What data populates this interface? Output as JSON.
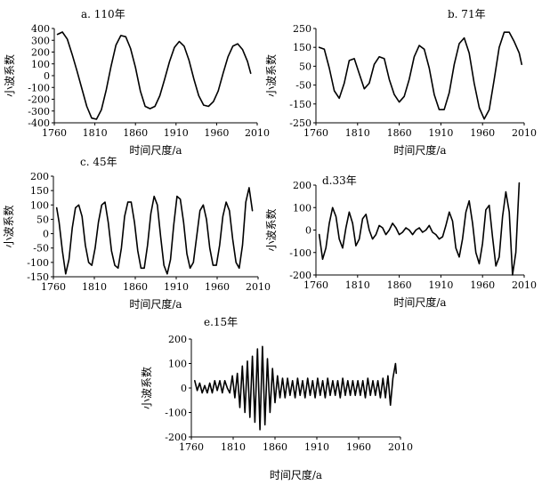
{
  "chart_data": [
    {
      "type": "line",
      "panel_label": "a. 110年",
      "xlabel": "时间尺度/a",
      "ylabel": "小波系数",
      "xlim": [
        1760,
        2010
      ],
      "ylim": [
        -400,
        400
      ],
      "xticks": [
        1760,
        1810,
        1860,
        1910,
        1960,
        2010
      ],
      "yticks": [
        -400,
        -300,
        -200,
        -100,
        0,
        100,
        200,
        300,
        400
      ],
      "series": [
        {
          "x": [
            1764,
            1770,
            1776,
            1782,
            1788,
            1794,
            1800,
            1806,
            1812,
            1818,
            1824,
            1830,
            1836,
            1842,
            1848,
            1854,
            1860,
            1866,
            1872,
            1878,
            1884,
            1890,
            1896,
            1902,
            1908,
            1914,
            1920,
            1926,
            1932,
            1938,
            1944,
            1950,
            1956,
            1962,
            1968,
            1974,
            1980,
            1986,
            1992,
            1998,
            2002
          ],
          "y": [
            350,
            370,
            310,
            180,
            40,
            -110,
            -260,
            -360,
            -370,
            -290,
            -120,
            80,
            260,
            340,
            330,
            230,
            70,
            -130,
            -260,
            -280,
            -260,
            -170,
            -30,
            120,
            240,
            290,
            250,
            130,
            -30,
            -170,
            -250,
            -260,
            -220,
            -130,
            20,
            160,
            250,
            270,
            220,
            120,
            20
          ]
        }
      ]
    },
    {
      "type": "line",
      "panel_label": "b. 71年",
      "xlabel": "时间尺度/a",
      "ylabel": "小波系数",
      "xlim": [
        1760,
        2010
      ],
      "ylim": [
        -250,
        250
      ],
      "xticks": [
        1760,
        1810,
        1860,
        1910,
        1960,
        2010
      ],
      "yticks": [
        -250,
        -150,
        -50,
        50,
        150,
        250
      ],
      "series": [
        {
          "x": [
            1764,
            1770,
            1776,
            1782,
            1788,
            1794,
            1800,
            1806,
            1812,
            1818,
            1824,
            1830,
            1836,
            1842,
            1848,
            1854,
            1860,
            1866,
            1872,
            1878,
            1884,
            1890,
            1896,
            1902,
            1908,
            1914,
            1920,
            1926,
            1932,
            1938,
            1944,
            1950,
            1956,
            1962,
            1968,
            1974,
            1980,
            1986,
            1992,
            1998,
            2004,
            2007
          ],
          "y": [
            150,
            140,
            40,
            -80,
            -120,
            -40,
            80,
            90,
            10,
            -70,
            -40,
            60,
            100,
            90,
            -20,
            -100,
            -140,
            -110,
            -20,
            100,
            160,
            140,
            40,
            -100,
            -180,
            -180,
            -90,
            60,
            170,
            200,
            120,
            -40,
            -170,
            -230,
            -180,
            -20,
            150,
            230,
            230,
            180,
            120,
            60
          ]
        }
      ]
    },
    {
      "type": "line",
      "panel_label": "c. 45年",
      "xlabel": "时间尺度/a",
      "ylabel": "小波系数",
      "xlim": [
        1760,
        2010
      ],
      "ylim": [
        -150,
        200
      ],
      "xticks": [
        1760,
        1810,
        1860,
        1910,
        1960,
        2010
      ],
      "yticks": [
        -150,
        -100,
        -50,
        0,
        50,
        100,
        150,
        200
      ],
      "series": [
        {
          "x": [
            1764,
            1767,
            1771,
            1775,
            1779,
            1783,
            1787,
            1791,
            1795,
            1799,
            1803,
            1807,
            1811,
            1815,
            1819,
            1823,
            1827,
            1831,
            1835,
            1839,
            1843,
            1847,
            1851,
            1855,
            1859,
            1863,
            1867,
            1871,
            1875,
            1879,
            1883,
            1887,
            1891,
            1895,
            1899,
            1903,
            1907,
            1911,
            1915,
            1919,
            1923,
            1927,
            1931,
            1935,
            1939,
            1943,
            1947,
            1951,
            1955,
            1959,
            1963,
            1967,
            1971,
            1975,
            1979,
            1983,
            1987,
            1991,
            1995,
            1999,
            2003
          ],
          "y": [
            90,
            40,
            -60,
            -140,
            -90,
            20,
            90,
            100,
            60,
            -40,
            -100,
            -110,
            -50,
            40,
            100,
            110,
            40,
            -60,
            -110,
            -120,
            -50,
            60,
            110,
            110,
            40,
            -60,
            -120,
            -120,
            -40,
            70,
            130,
            100,
            -10,
            -110,
            -140,
            -90,
            30,
            130,
            120,
            40,
            -70,
            -120,
            -100,
            -10,
            80,
            100,
            50,
            -50,
            -110,
            -110,
            -40,
            60,
            110,
            80,
            -20,
            -100,
            -120,
            -40,
            110,
            160,
            80
          ]
        }
      ]
    },
    {
      "type": "line",
      "panel_label": "d.33年",
      "xlabel": "时间尺度/a",
      "ylabel": "小波系数",
      "xlim": [
        1760,
        2010
      ],
      "ylim": [
        -200,
        200
      ],
      "xticks": [
        1760,
        1810,
        1860,
        1910,
        1960,
        2010
      ],
      "yticks": [
        -200,
        -100,
        0,
        100,
        200
      ],
      "series": [
        {
          "x": [
            1764,
            1768,
            1772,
            1776,
            1780,
            1784,
            1788,
            1792,
            1796,
            1800,
            1804,
            1808,
            1812,
            1816,
            1820,
            1824,
            1828,
            1832,
            1836,
            1840,
            1844,
            1848,
            1852,
            1856,
            1860,
            1864,
            1868,
            1872,
            1876,
            1880,
            1884,
            1888,
            1892,
            1896,
            1900,
            1904,
            1908,
            1912,
            1916,
            1920,
            1924,
            1928,
            1932,
            1936,
            1940,
            1944,
            1948,
            1952,
            1956,
            1960,
            1964,
            1968,
            1972,
            1976,
            1980,
            1984,
            1988,
            1992,
            1996,
            2000,
            2004
          ],
          "y": [
            -20,
            -130,
            -80,
            30,
            100,
            60,
            -40,
            -80,
            10,
            80,
            30,
            -70,
            -40,
            50,
            70,
            0,
            -40,
            -20,
            20,
            10,
            -20,
            0,
            30,
            10,
            -20,
            -10,
            10,
            0,
            -20,
            0,
            10,
            -10,
            0,
            20,
            -10,
            -20,
            -40,
            -30,
            20,
            80,
            40,
            -80,
            -120,
            -40,
            80,
            130,
            30,
            -100,
            -150,
            -60,
            90,
            110,
            -30,
            -160,
            -120,
            60,
            170,
            80,
            -200,
            -100,
            210
          ]
        }
      ]
    },
    {
      "type": "line",
      "panel_label": "e.15年",
      "xlabel": "时间尺度/a",
      "ylabel": "小波系数",
      "xlim": [
        1760,
        2010
      ],
      "ylim": [
        -200,
        200
      ],
      "xticks": [
        1760,
        1810,
        1860,
        1910,
        1960,
        2010
      ],
      "yticks": [
        -200,
        -100,
        0,
        100,
        200
      ],
      "series": [
        {
          "x": [
            1764,
            1767,
            1770,
            1773,
            1776,
            1779,
            1782,
            1785,
            1788,
            1791,
            1794,
            1797,
            1800,
            1803,
            1806,
            1809,
            1812,
            1815,
            1818,
            1821,
            1824,
            1827,
            1830,
            1833,
            1836,
            1839,
            1842,
            1845,
            1848,
            1851,
            1854,
            1857,
            1860,
            1863,
            1866,
            1869,
            1872,
            1875,
            1878,
            1881,
            1884,
            1887,
            1890,
            1893,
            1896,
            1899,
            1902,
            1905,
            1908,
            1911,
            1914,
            1917,
            1920,
            1923,
            1926,
            1929,
            1932,
            1935,
            1938,
            1941,
            1944,
            1947,
            1950,
            1953,
            1956,
            1959,
            1962,
            1965,
            1968,
            1971,
            1974,
            1977,
            1980,
            1983,
            1986,
            1989,
            1992,
            1995,
            1998,
            2001,
            2004,
            2005
          ],
          "y": [
            30,
            -10,
            20,
            -20,
            10,
            -20,
            20,
            -20,
            30,
            -10,
            30,
            -20,
            30,
            0,
            -20,
            50,
            -40,
            60,
            -80,
            90,
            -100,
            110,
            -120,
            130,
            -140,
            160,
            -170,
            170,
            -150,
            120,
            -100,
            80,
            -60,
            50,
            -40,
            40,
            -40,
            40,
            -30,
            30,
            -40,
            40,
            -30,
            30,
            -40,
            40,
            -30,
            30,
            -40,
            40,
            -30,
            30,
            -40,
            40,
            -30,
            30,
            -30,
            30,
            -40,
            40,
            -30,
            30,
            -30,
            30,
            -30,
            30,
            -30,
            30,
            -40,
            40,
            -30,
            30,
            -30,
            30,
            -40,
            40,
            -40,
            50,
            -70,
            40,
            100,
            60
          ]
        }
      ]
    }
  ]
}
